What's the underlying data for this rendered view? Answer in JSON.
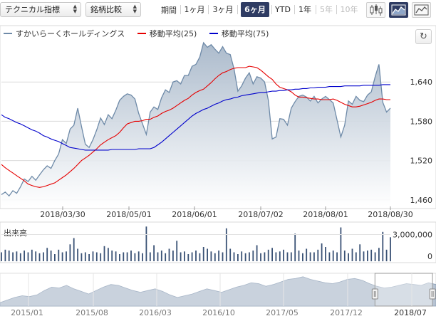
{
  "toolbar": {
    "technical_select": "テクニカル指標",
    "compare_select": "銘柄比較",
    "period_label": "期間",
    "periods": [
      "1ヶ月",
      "3ヶ月",
      "6ヶ月",
      "YTD",
      "1年",
      "5年",
      "10年"
    ],
    "active_period": "6ヶ月",
    "disabled_periods": [
      "5年",
      "10年"
    ],
    "chart_type_buttons": [
      "candlestick-icon",
      "area-chart-icon",
      "line-chart-icon"
    ],
    "active_chart_type": "area-chart-icon"
  },
  "legend": {
    "stock": "すかいらーくホールディングス",
    "ma25": "移動平均(25)",
    "ma75": "移動平均(75)"
  },
  "reset_icon": "refresh-icon",
  "volume_label": "出来高",
  "colors": {
    "price_line": "#6e8aa8",
    "price_fill_top": "#a7b7c9",
    "ma25": "#e60000",
    "ma75": "#0000cc",
    "volume": "#3a5275",
    "navigator_fill": "#b7c3d2",
    "active_button": "#2f3c63"
  },
  "chart_data": [
    {
      "type": "area",
      "role": "price",
      "x_tick_labels": [
        "2018/03/30",
        "2018/05/01",
        "2018/06/01",
        "2018/07/02",
        "2018/08/01",
        "2018/08/30"
      ],
      "y_tick_labels": [
        "1,640",
        "1,580",
        "1,520",
        "1,460"
      ],
      "ylim": [
        1450,
        1700
      ],
      "series": [
        {
          "name": "すかいらーくホールディングス",
          "values": [
            1468,
            1472,
            1466,
            1474,
            1470,
            1480,
            1492,
            1488,
            1496,
            1490,
            1498,
            1506,
            1512,
            1508,
            1520,
            1530,
            1552,
            1546,
            1568,
            1574,
            1600,
            1572,
            1545,
            1540,
            1552,
            1567,
            1585,
            1575,
            1590,
            1584,
            1597,
            1612,
            1618,
            1622,
            1620,
            1614,
            1592,
            1576,
            1560,
            1594,
            1602,
            1598,
            1616,
            1628,
            1624,
            1640,
            1642,
            1637,
            1650,
            1650,
            1664,
            1667,
            1678,
            1700,
            1693,
            1697,
            1690,
            1684,
            1694,
            1684,
            1682,
            1660,
            1626,
            1634,
            1646,
            1654,
            1637,
            1648,
            1646,
            1640,
            1612,
            1553,
            1556,
            1584,
            1583,
            1574,
            1600,
            1610,
            1618,
            1620,
            1617,
            1611,
            1618,
            1608,
            1614,
            1618,
            1613,
            1608,
            1582,
            1556,
            1574,
            1611,
            1606,
            1618,
            1612,
            1610,
            1620,
            1625,
            1648,
            1667,
            1609,
            1594,
            1600
          ]
        },
        {
          "name": "移動平均(25)",
          "values": [
            1514,
            1509,
            1505,
            1501,
            1497,
            1493,
            1489,
            1484,
            1482,
            1480,
            1479,
            1480,
            1482,
            1484,
            1486,
            1490,
            1494,
            1498,
            1503,
            1508,
            1514,
            1520,
            1524,
            1528,
            1533,
            1538,
            1544,
            1548,
            1552,
            1555,
            1558,
            1563,
            1570,
            1576,
            1578,
            1580,
            1580,
            1581,
            1583,
            1583,
            1586,
            1588,
            1592,
            1595,
            1597,
            1600,
            1604,
            1608,
            1612,
            1615,
            1620,
            1624,
            1627,
            1629,
            1634,
            1639,
            1645,
            1650,
            1654,
            1656,
            1659,
            1661,
            1662,
            1662,
            1662,
            1664,
            1663,
            1662,
            1658,
            1653,
            1648,
            1644,
            1637,
            1632,
            1630,
            1628,
            1625,
            1620,
            1617,
            1617,
            1616,
            1615,
            1614,
            1614,
            1613,
            1613,
            1613,
            1614,
            1612,
            1609,
            1606,
            1604,
            1602,
            1602,
            1603,
            1605,
            1607,
            1609,
            1612,
            1614,
            1614,
            1613,
            1613
          ]
        },
        {
          "name": "移動平均(75)",
          "values": [
            1590,
            1586,
            1584,
            1581,
            1578,
            1576,
            1573,
            1570,
            1567,
            1565,
            1562,
            1558,
            1556,
            1553,
            1551,
            1549,
            1546,
            1543,
            1540,
            1539,
            1538,
            1537,
            1536,
            1536,
            1536,
            1536,
            1536,
            1536,
            1536,
            1537,
            1537,
            1537,
            1537,
            1537,
            1537,
            1537,
            1538,
            1538,
            1538,
            1538,
            1540,
            1544,
            1548,
            1553,
            1558,
            1563,
            1568,
            1573,
            1578,
            1583,
            1588,
            1592,
            1595,
            1598,
            1600,
            1603,
            1606,
            1608,
            1611,
            1613,
            1614,
            1616,
            1617,
            1619,
            1620,
            1621,
            1622,
            1623,
            1624,
            1624,
            1625,
            1626,
            1626,
            1627,
            1627,
            1628,
            1628,
            1629,
            1629,
            1630,
            1630,
            1631,
            1631,
            1632,
            1632,
            1632,
            1633,
            1633,
            1633,
            1633,
            1634,
            1634,
            1634,
            1634,
            1634,
            1635,
            1635,
            1635,
            1635,
            1635,
            1636,
            1636,
            1636
          ]
        }
      ]
    },
    {
      "type": "bar",
      "role": "volume",
      "y_tick_labels": [
        "3,000,000",
        "0"
      ],
      "ylim": [
        0,
        4000000
      ],
      "values": [
        1000000,
        1300000,
        1200000,
        1000000,
        1100000,
        900000,
        1200000,
        1000000,
        1300000,
        1100000,
        900000,
        1000000,
        1500000,
        1200000,
        800000,
        1300000,
        1000000,
        1100000,
        1900000,
        2600000,
        1400000,
        900000,
        1000000,
        800000,
        1100000,
        1000000,
        900000,
        1700000,
        1500000,
        1200000,
        1100000,
        800000,
        1000000,
        1000000,
        1200000,
        900000,
        1100000,
        900000,
        3900000,
        1000000,
        1800000,
        1000000,
        1200000,
        900000,
        1400000,
        1200000,
        2300000,
        1000000,
        1100000,
        800000,
        1000000,
        1200000,
        900000,
        1600000,
        1400000,
        1100000,
        900000,
        1200000,
        1000000,
        3700000,
        1400000,
        1000000,
        800000,
        1100000,
        900000,
        1000000,
        1200000,
        1800000,
        900000,
        1000000,
        1300000,
        1500000,
        1000000,
        1100000,
        1300000,
        1000000,
        1000000,
        3100000,
        1200000,
        900000,
        1400000,
        1000000,
        1000000,
        1300000,
        2000000,
        1600000,
        1000000,
        1200000,
        1000000,
        3800000,
        1200000,
        900000,
        1400000,
        1000000,
        1900000,
        1100000,
        1200000,
        1300000,
        1000000,
        1500000,
        3300000,
        1300000,
        2700000
      ]
    },
    {
      "type": "area",
      "role": "navigator",
      "x_tick_labels": [
        "2015/01",
        "2015/08",
        "2016/03",
        "2016/10",
        "2017/05",
        "2017/12",
        "2018/07"
      ],
      "values": [
        1420,
        1450,
        1480,
        1500,
        1490,
        1510,
        1560,
        1600,
        1590,
        1620,
        1580,
        1550,
        1520,
        1560,
        1600,
        1630,
        1620,
        1590,
        1560,
        1540,
        1560,
        1580,
        1550,
        1510,
        1480,
        1500,
        1520,
        1550,
        1580,
        1560,
        1540,
        1570,
        1600,
        1620,
        1650,
        1640,
        1610,
        1630,
        1660,
        1690,
        1700,
        1720,
        1690,
        1670,
        1650,
        1640,
        1660,
        1690,
        1700,
        1680,
        1640,
        1610,
        1590,
        1600,
        1620,
        1640,
        1630,
        1620,
        1650,
        1630
      ],
      "selected_range_fraction": [
        0.86,
        0.992
      ]
    }
  ]
}
